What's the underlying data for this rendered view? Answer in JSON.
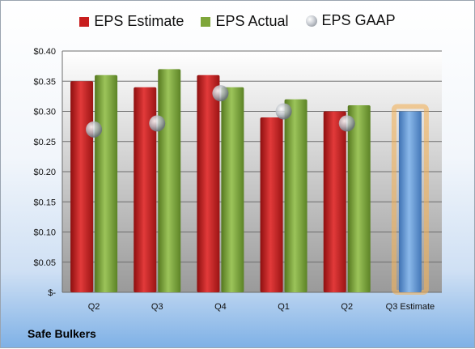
{
  "company": "Safe Bulkers",
  "legend": {
    "estimate": "EPS Estimate",
    "actual": "EPS Actual",
    "gaap": "EPS GAAP"
  },
  "colors": {
    "estimate": "#c81e1e",
    "actual": "#7ea63a",
    "gaap": "#a9adb3",
    "forecast": "#6a9fd8",
    "forecast_glow": "#f2b25c"
  },
  "chart_data": {
    "type": "bar",
    "categories": [
      "Q2",
      "Q3",
      "Q4",
      "Q1",
      "Q2",
      "Q3 Estimate"
    ],
    "series": [
      {
        "name": "EPS Estimate",
        "values": [
          0.35,
          0.34,
          0.36,
          0.29,
          0.3,
          null
        ]
      },
      {
        "name": "EPS Actual",
        "values": [
          0.36,
          0.37,
          0.34,
          0.32,
          0.31,
          null
        ]
      },
      {
        "name": "EPS GAAP",
        "values": [
          0.27,
          0.28,
          0.33,
          0.3,
          0.28,
          null
        ]
      }
    ],
    "forecast": {
      "category": "Q3 Estimate",
      "value": 0.3
    },
    "ylim": [
      0,
      0.4
    ],
    "yticks": [
      "$-",
      "$0.05",
      "$0.10",
      "$0.15",
      "$0.20",
      "$0.25",
      "$0.30",
      "$0.35",
      "$0.40"
    ],
    "grid": true,
    "legend_position": "top"
  }
}
